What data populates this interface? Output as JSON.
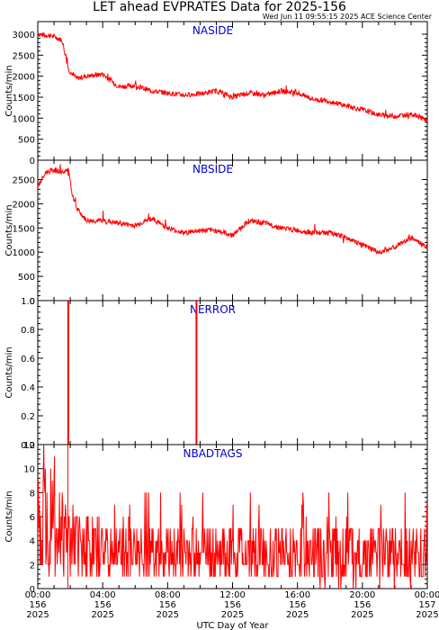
{
  "header": {
    "title": "LET ahead EVPRATES Data for 2025-156",
    "timestamp": "Wed Jun 11 09:55:15 2025 ACE Science Center"
  },
  "colors": {
    "series": "#ff0000",
    "label": "#0000cc",
    "axis": "#000000"
  },
  "chart_data": [
    {
      "type": "line",
      "label": "NASIDE",
      "ylabel": "Counts/min",
      "ylim": [
        0,
        3300
      ],
      "yticks": [
        0,
        500,
        1000,
        1500,
        2000,
        2500,
        3000
      ],
      "xlim": [
        0,
        24
      ],
      "x": [
        0.0,
        1.0,
        1.5,
        1.9,
        2.4,
        3.0,
        4.0,
        5.0,
        6.0,
        7.0,
        8.0,
        9.0,
        10.0,
        11.0,
        12.0,
        13.0,
        14.0,
        15.0,
        16.0,
        17.0,
        18.0,
        19.0,
        20.0,
        21.0,
        22.0,
        23.0,
        24.0
      ],
      "y": [
        3000,
        2950,
        2850,
        2150,
        1950,
        2000,
        2050,
        1750,
        1780,
        1650,
        1600,
        1550,
        1580,
        1650,
        1500,
        1600,
        1550,
        1650,
        1600,
        1450,
        1400,
        1300,
        1200,
        1080,
        1050,
        1100,
        950
      ]
    },
    {
      "type": "line",
      "label": "NBSIDE",
      "ylabel": "Counts/min",
      "ylim": [
        0,
        2900
      ],
      "yticks": [
        0,
        500,
        1000,
        1500,
        2000,
        2500
      ],
      "xlim": [
        0,
        24
      ],
      "x": [
        0.0,
        0.5,
        1.0,
        1.5,
        1.9,
        2.1,
        2.4,
        3.0,
        4.0,
        5.0,
        6.0,
        7.0,
        8.0,
        9.0,
        10.0,
        11.0,
        12.0,
        13.0,
        14.0,
        15.0,
        16.0,
        17.0,
        18.0,
        19.0,
        20.0,
        21.0,
        22.0,
        23.0,
        24.0
      ],
      "y": [
        2350,
        2650,
        2700,
        2650,
        2700,
        2200,
        1900,
        1650,
        1650,
        1600,
        1550,
        1700,
        1500,
        1400,
        1450,
        1450,
        1350,
        1650,
        1600,
        1500,
        1450,
        1400,
        1400,
        1300,
        1150,
        1000,
        1100,
        1300,
        1100
      ]
    },
    {
      "type": "line",
      "label": "NERROR",
      "ylabel": "Counts/min",
      "ylim": [
        0,
        1.0
      ],
      "yticks": [
        0.0,
        0.2,
        0.4,
        0.6,
        0.8,
        1.0
      ],
      "xlim": [
        0,
        24
      ],
      "spikes": [
        1.85,
        9.75
      ]
    },
    {
      "type": "line",
      "label": "NBADTAGS",
      "ylabel": "Counts/min",
      "ylim": [
        0,
        12
      ],
      "yticks": [
        0,
        2,
        4,
        6,
        8,
        10,
        12
      ],
      "xlim": [
        0,
        24
      ],
      "x": [
        0,
        1,
        2,
        4,
        8,
        12,
        16,
        20,
        24
      ],
      "y": [
        6,
        5.5,
        4,
        3.2,
        3,
        3,
        2.9,
        2.8,
        2.8
      ]
    }
  ],
  "xaxis": {
    "title": "UTC Day of Year",
    "ticks": [
      {
        "x": 0,
        "time": "00:00",
        "doy": "156",
        "year": "2025"
      },
      {
        "x": 4,
        "time": "04:00",
        "doy": "156",
        "year": "2025"
      },
      {
        "x": 8,
        "time": "08:00",
        "doy": "156",
        "year": "2025"
      },
      {
        "x": 12,
        "time": "12:00",
        "doy": "156",
        "year": "2025"
      },
      {
        "x": 16,
        "time": "16:00",
        "doy": "156",
        "year": "2025"
      },
      {
        "x": 20,
        "time": "20:00",
        "doy": "156",
        "year": "2025"
      },
      {
        "x": 24,
        "time": "00:00",
        "doy": "157",
        "year": "2025"
      }
    ]
  }
}
